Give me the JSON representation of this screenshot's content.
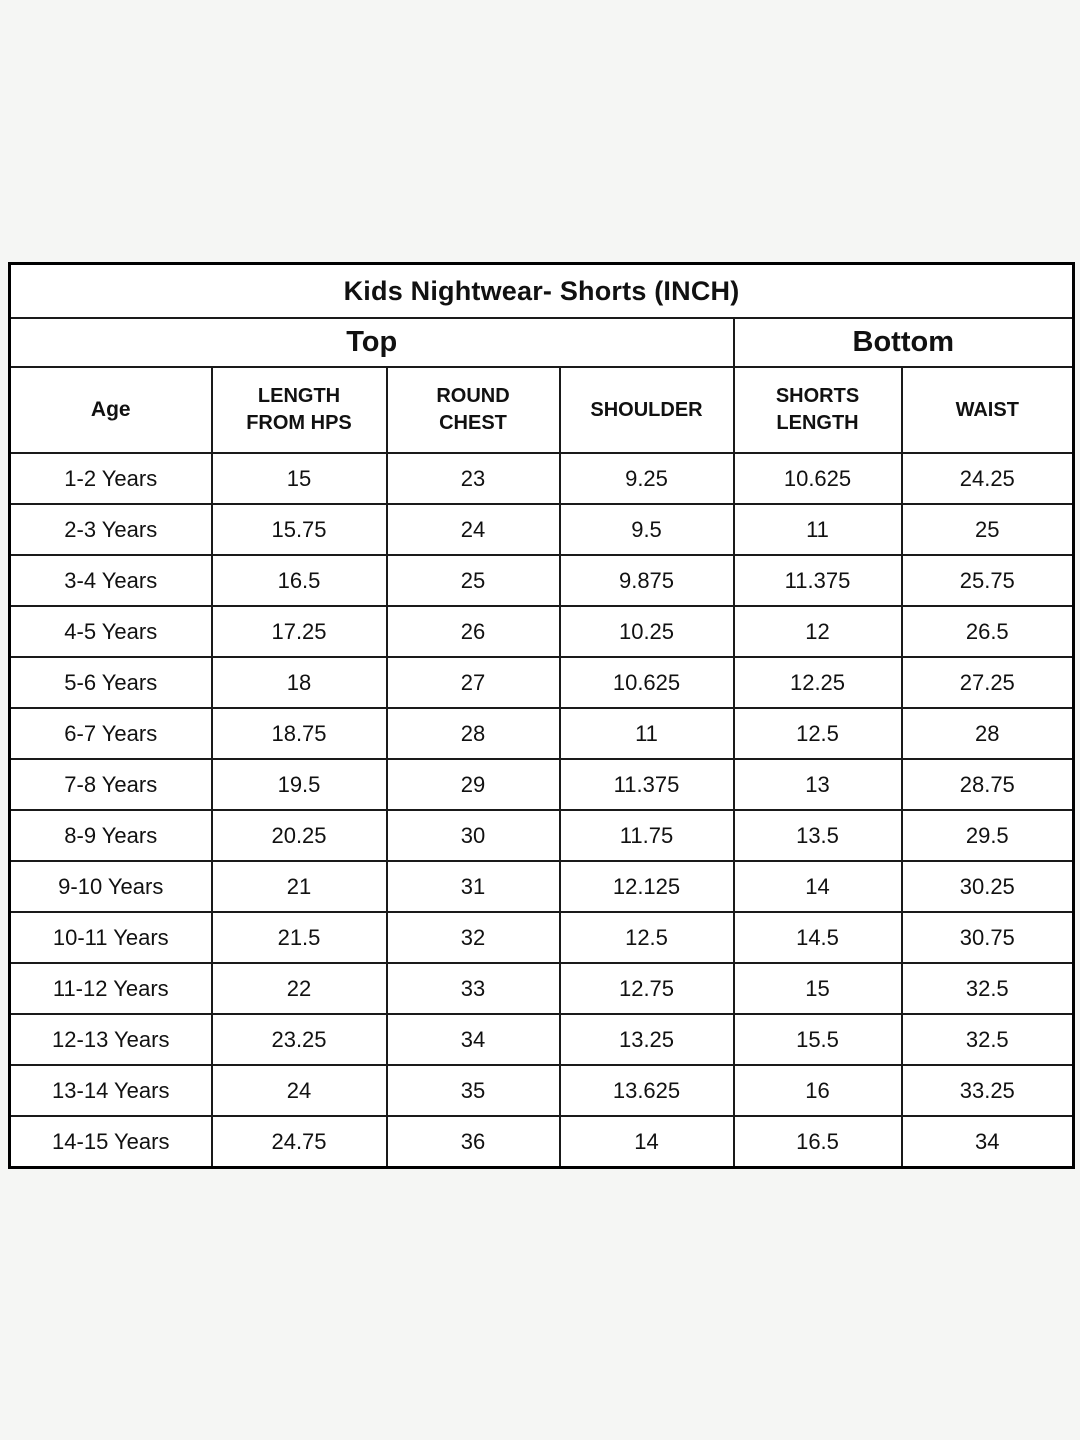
{
  "page": {
    "background_color": "#f5f6f4",
    "table_background_color": "#ffffff",
    "border_color": "#000000",
    "text_color": "#111111"
  },
  "table": {
    "title": "Kids Nightwear- Shorts (INCH)",
    "sections": [
      {
        "label": "Top",
        "columns_spanned": 4
      },
      {
        "label": "Bottom",
        "columns_spanned": 2
      }
    ],
    "columns": [
      "Age",
      "LENGTH\nFROM HPS",
      "ROUND\nCHEST",
      "SHOULDER",
      "SHORTS\nLENGTH",
      "WAIST"
    ],
    "rows": [
      [
        "1-2 Years",
        "15",
        "23",
        "9.25",
        "10.625",
        "24.25"
      ],
      [
        "2-3 Years",
        "15.75",
        "24",
        "9.5",
        "11",
        "25"
      ],
      [
        "3-4 Years",
        "16.5",
        "25",
        "9.875",
        "11.375",
        "25.75"
      ],
      [
        "4-5 Years",
        "17.25",
        "26",
        "10.25",
        "12",
        "26.5"
      ],
      [
        "5-6 Years",
        "18",
        "27",
        "10.625",
        "12.25",
        "27.25"
      ],
      [
        "6-7 Years",
        "18.75",
        "28",
        "11",
        "12.5",
        "28"
      ],
      [
        "7-8 Years",
        "19.5",
        "29",
        "11.375",
        "13",
        "28.75"
      ],
      [
        "8-9 Years",
        "20.25",
        "30",
        "11.75",
        "13.5",
        "29.5"
      ],
      [
        "9-10 Years",
        "21",
        "31",
        "12.125",
        "14",
        "30.25"
      ],
      [
        "10-11 Years",
        "21.5",
        "32",
        "12.5",
        "14.5",
        "30.75"
      ],
      [
        "11-12 Years",
        "22",
        "33",
        "12.75",
        "15",
        "32.5"
      ],
      [
        "12-13 Years",
        "23.25",
        "34",
        "13.25",
        "15.5",
        "32.5"
      ],
      [
        "13-14 Years",
        "24",
        "35",
        "13.625",
        "16",
        "33.25"
      ],
      [
        "14-15 Years",
        "24.75",
        "36",
        "14",
        "16.5",
        "34"
      ]
    ]
  },
  "chart_data": {
    "type": "table",
    "title": "Kids Nightwear- Shorts (INCH)",
    "section_headers": [
      "Top",
      "Bottom"
    ],
    "columns": [
      "Age",
      "LENGTH FROM HPS",
      "ROUND CHEST",
      "SHOULDER",
      "SHORTS LENGTH",
      "WAIST"
    ],
    "rows": [
      [
        "1-2 Years",
        15,
        23,
        9.25,
        10.625,
        24.25
      ],
      [
        "2-3 Years",
        15.75,
        24,
        9.5,
        11,
        25
      ],
      [
        "3-4 Years",
        16.5,
        25,
        9.875,
        11.375,
        25.75
      ],
      [
        "4-5 Years",
        17.25,
        26,
        10.25,
        12,
        26.5
      ],
      [
        "5-6 Years",
        18,
        27,
        10.625,
        12.25,
        27.25
      ],
      [
        "6-7 Years",
        18.75,
        28,
        11,
        12.5,
        28
      ],
      [
        "7-8 Years",
        19.5,
        29,
        11.375,
        13,
        28.75
      ],
      [
        "8-9 Years",
        20.25,
        30,
        11.75,
        13.5,
        29.5
      ],
      [
        "9-10 Years",
        21,
        31,
        12.125,
        14,
        30.25
      ],
      [
        "10-11 Years",
        21.5,
        32,
        12.5,
        14.5,
        30.75
      ],
      [
        "11-12 Years",
        22,
        33,
        12.75,
        15,
        32.5
      ],
      [
        "12-13 Years",
        23.25,
        34,
        13.25,
        15.5,
        32.5
      ],
      [
        "13-14 Years",
        24,
        35,
        13.625,
        16,
        33.25
      ],
      [
        "14-15 Years",
        24.75,
        36,
        14,
        16.5,
        34
      ]
    ]
  }
}
